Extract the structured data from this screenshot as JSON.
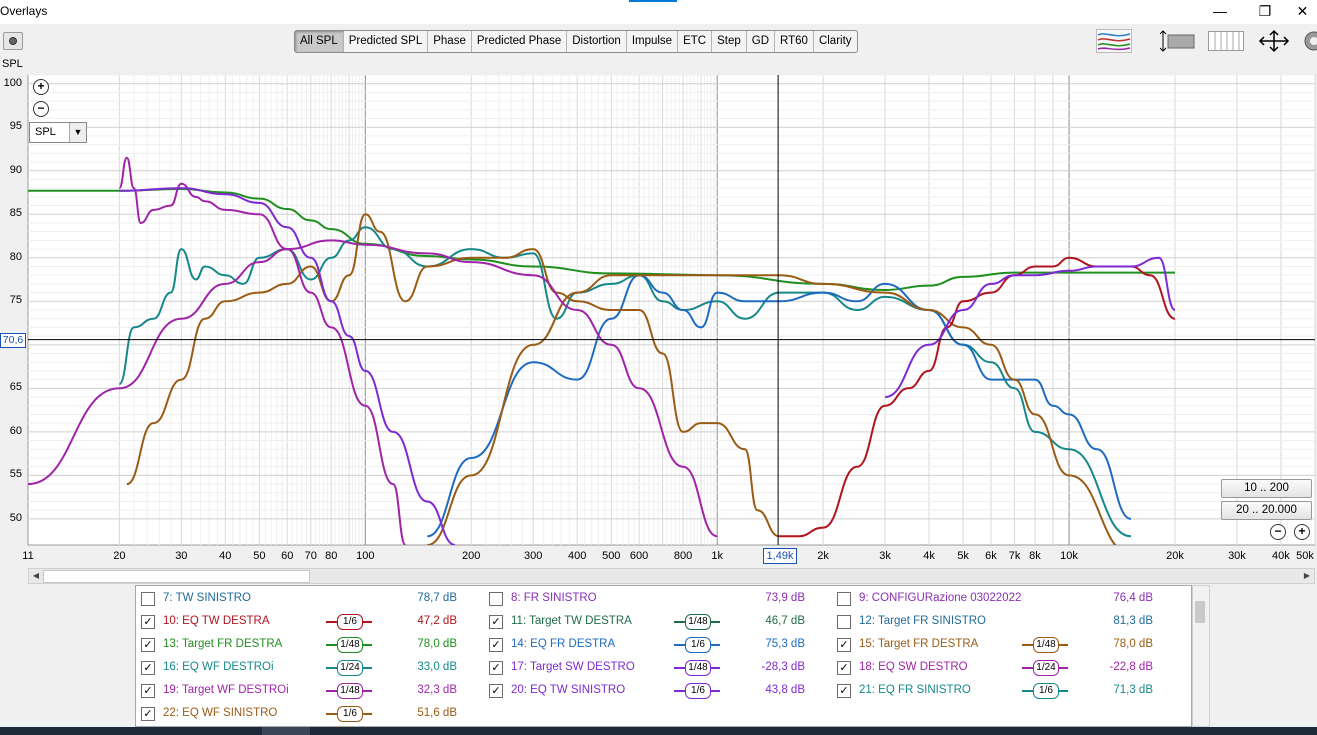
{
  "window": {
    "title": "Overlays",
    "minimize": "—",
    "maximize": "❐",
    "close": "✕"
  },
  "toolbar": {
    "tabs": [
      "All SPL",
      "Predicted SPL",
      "Phase",
      "Predicted Phase",
      "Distortion",
      "Impulse",
      "ETC",
      "Step",
      "GD",
      "RT60",
      "Clarity"
    ],
    "active_tab": "All SPL",
    "right_icons": [
      "trace-arrange-icon",
      "limits-icon",
      "controls-icon",
      "move-arrows-icon",
      "gear-icon"
    ]
  },
  "graph": {
    "y_axis_title": "SPL",
    "y_ticks": [
      "100",
      "95",
      "90",
      "85",
      "80",
      "75",
      "70,6",
      "65",
      "60",
      "55",
      "50"
    ],
    "y_cursor": "70,6",
    "x_ticks": [
      "11",
      "20",
      "30",
      "40",
      "50",
      "60",
      "70",
      "80",
      "100",
      "200",
      "300",
      "400",
      "500",
      "600",
      "800",
      "1k",
      "1,49k",
      "2k",
      "3k",
      "4k",
      "5k",
      "6k",
      "7k",
      "8k",
      "10k",
      "20k",
      "30k",
      "40k",
      "50k"
    ],
    "x_cursor": "1,49k",
    "spl_dropdown": "SPL",
    "range_buttons": [
      "10 .. 200",
      "20 .. 20.000"
    ],
    "zoom_in": "+",
    "zoom_out": "−",
    "chart_data": {
      "type": "line",
      "xlim": [
        11,
        50000
      ],
      "ylim": [
        47,
        101
      ],
      "x_scale": "log",
      "ylabel": "SPL",
      "grid": true,
      "series": [
        {
          "name": "13: Target FR DESTRA",
          "color": "#1f8f1f",
          "x": [
            11,
            20,
            30,
            40,
            50,
            60,
            70,
            80,
            100,
            150,
            200,
            300,
            500,
            1000,
            2000,
            3000,
            4000,
            5000,
            7000,
            10000,
            20000
          ],
          "y": [
            87.7,
            87.7,
            87.9,
            87.5,
            86.8,
            85.6,
            84.3,
            83.3,
            81.6,
            80.2,
            79.8,
            79.0,
            78.2,
            78.0,
            77.0,
            76.3,
            76.8,
            77.8,
            78.3,
            78.3,
            78.3
          ]
        },
        {
          "name": "21: EQ FR SINISTRO",
          "color": "#17888a",
          "x": [
            20,
            22,
            25,
            28,
            30,
            33,
            35,
            40,
            45,
            50,
            60,
            70,
            80,
            90,
            100,
            120,
            150,
            200,
            250,
            300,
            350,
            400,
            500,
            600,
            700,
            800,
            1000,
            1200,
            1500,
            2000,
            2500,
            3000,
            4000,
            5000,
            6000,
            7000,
            8000,
            10000,
            15000
          ],
          "y": [
            65.5,
            72,
            73,
            76,
            81,
            77.5,
            79,
            78,
            77,
            80,
            81,
            77.5,
            80,
            82,
            83.5,
            81,
            79,
            81,
            80,
            80.5,
            73,
            76,
            77,
            78,
            75,
            74,
            75,
            73,
            76,
            76,
            74,
            75.5,
            74,
            70,
            68,
            65,
            60,
            58,
            48
          ]
        },
        {
          "name": "14: EQ FR DESTRA",
          "color": "#1f6bbf",
          "x": [
            150,
            200,
            300,
            400,
            500,
            600,
            700,
            800,
            900,
            1000,
            1200,
            1500,
            2000,
            2500,
            3000,
            4000,
            5000,
            6000,
            7000,
            8000,
            9000,
            10000,
            12000,
            15000
          ],
          "y": [
            48,
            57,
            68,
            66,
            73,
            78,
            76,
            74,
            72,
            76,
            75,
            75,
            76,
            75,
            77,
            74,
            70,
            66,
            66,
            66,
            63,
            62,
            58,
            50
          ]
        },
        {
          "name": "22: EQ WF SINISTRO",
          "color": "#9a5b14",
          "x": [
            21,
            25,
            30,
            35,
            40,
            50,
            60,
            70,
            80,
            90,
            100,
            110,
            130,
            150,
            200,
            250,
            300,
            350,
            400,
            500,
            600,
            700,
            800,
            900,
            1000,
            1200,
            1300,
            1500
          ],
          "y": [
            54,
            61,
            66,
            73,
            75,
            76,
            77,
            79,
            75,
            78,
            85,
            83,
            75,
            79,
            80,
            80,
            81,
            76,
            75,
            74,
            74,
            69,
            60,
            61,
            61,
            58,
            51,
            48
          ]
        },
        {
          "name": "15: Target FR DESTRA",
          "color": "#9a5b14",
          "x": [
            150,
            200,
            300,
            400,
            500,
            700,
            1000,
            1500,
            2000,
            3000,
            4000,
            5000,
            6000,
            7000,
            8000,
            10000,
            15000
          ],
          "y": [
            47,
            55,
            70,
            76,
            78,
            78,
            78,
            78,
            77,
            76,
            74,
            72,
            70,
            66,
            62,
            55,
            46
          ]
        },
        {
          "name": "19: Target WF DESTROi",
          "color": "#a024a8",
          "x": [
            11,
            20,
            30,
            40,
            50,
            60,
            80,
            100,
            150,
            200,
            300,
            400,
            500,
            600,
            800,
            1000
          ],
          "y": [
            54,
            65,
            73,
            77,
            79.5,
            81,
            82,
            81.5,
            80.5,
            79.5,
            78,
            74,
            70,
            65,
            56,
            48
          ]
        },
        {
          "name": "16: EQ WF DESTROi",
          "color": "#a024a8",
          "x": [
            20,
            21,
            22,
            23,
            25,
            28,
            30,
            33,
            35,
            40,
            50,
            60,
            70,
            80,
            100,
            120,
            130
          ],
          "y": [
            88,
            91.5,
            88,
            84,
            85.5,
            86,
            88.5,
            87,
            86.5,
            85.5,
            85,
            81,
            76,
            72,
            63,
            54,
            47
          ]
        },
        {
          "name": "18: EQ SW DESTRO",
          "color": "#7e2ad2",
          "x": [
            20,
            30,
            40,
            50,
            60,
            70,
            80,
            90,
            100,
            120,
            150,
            180
          ],
          "y": [
            87.7,
            88,
            87.3,
            86.3,
            83.5,
            80,
            75,
            71,
            67,
            60,
            52,
            47
          ]
        },
        {
          "name": "10: EQ TW DESTRA",
          "color": "#b0141f",
          "x": [
            1500,
            1700,
            2000,
            2500,
            3000,
            3500,
            4000,
            4500,
            5000,
            6000,
            7000,
            8000,
            9000,
            10000,
            12000,
            15000,
            17000,
            20000
          ],
          "y": [
            48,
            48,
            49,
            56,
            63,
            65,
            67,
            72,
            75,
            76,
            78,
            79,
            79,
            80,
            79,
            79,
            78,
            73
          ]
        },
        {
          "name": "17: Target SW DESTRO",
          "color": "#7e2ad2",
          "x": [
            3000,
            4000,
            5000,
            6000,
            7000,
            8000,
            10000,
            12000,
            15000,
            18000,
            20000
          ],
          "y": [
            64,
            70,
            74,
            77,
            78,
            78,
            78.5,
            79,
            79,
            80,
            74
          ]
        }
      ]
    }
  },
  "legend": {
    "items": [
      {
        "checked": false,
        "name": "7: TW SINISTRO",
        "value": "78,7 dB",
        "color": "#1f6b9a",
        "smooth": ""
      },
      {
        "checked": false,
        "name": "8: FR SINISTRO",
        "value": "73,9 dB",
        "color": "#8a2fb4",
        "smooth": ""
      },
      {
        "checked": false,
        "name": "9: CONFIGURazione 03022022",
        "value": "76,4 dB",
        "color": "#8a2fb4",
        "smooth": ""
      },
      {
        "checked": true,
        "name": "10: EQ TW DESTRA",
        "value": "47,2 dB",
        "color": "#b0141f",
        "smooth": "1/6"
      },
      {
        "checked": true,
        "name": "11: Target TW DESTRA",
        "value": "46,7 dB",
        "color": "#1f6b4a",
        "smooth": "1/48"
      },
      {
        "checked": false,
        "name": "12: Target FR SINISTRO",
        "value": "81,3 dB",
        "color": "#1f6b9a",
        "smooth": ""
      },
      {
        "checked": true,
        "name": "13: Target FR DESTRA",
        "value": "78,0 dB",
        "color": "#1f8f1f",
        "smooth": "1/48"
      },
      {
        "checked": true,
        "name": "14: EQ FR DESTRA",
        "value": "75,3 dB",
        "color": "#1f6bbf",
        "smooth": "1/6"
      },
      {
        "checked": true,
        "name": "15: Target FR DESTRA",
        "value": "78,0 dB",
        "color": "#9a5b14",
        "smooth": "1/48"
      },
      {
        "checked": true,
        "name": "16: EQ WF DESTROi",
        "value": "33,0 dB",
        "color": "#17888a",
        "smooth": "1/24"
      },
      {
        "checked": true,
        "name": "17: Target SW DESTRO",
        "value": "-28,3 dB",
        "color": "#7e2ad2",
        "smooth": "1/48"
      },
      {
        "checked": true,
        "name": "18: EQ SW DESTRO",
        "value": "-22,8 dB",
        "color": "#a024a8",
        "smooth": "1/24"
      },
      {
        "checked": true,
        "name": "19: Target WF DESTROi",
        "value": "32,3 dB",
        "color": "#a024a8",
        "smooth": "1/48"
      },
      {
        "checked": true,
        "name": "20: EQ TW SINISTRO",
        "value": "43,8 dB",
        "color": "#7e2ad2",
        "smooth": "1/6"
      },
      {
        "checked": true,
        "name": "21: EQ FR SINISTRO",
        "value": "71,3 dB",
        "color": "#17888a",
        "smooth": "1/6"
      },
      {
        "checked": true,
        "name": "22: EQ WF SINISTRO",
        "value": "51,6 dB",
        "color": "#9a5b14",
        "smooth": "1/6"
      }
    ]
  }
}
